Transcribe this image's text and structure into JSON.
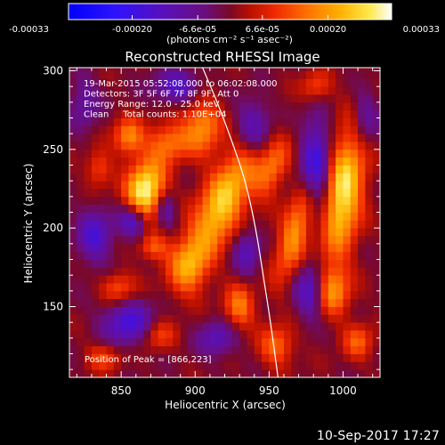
{
  "colorbar": {
    "tick_labels": [
      "-0.00033",
      "-0.00020",
      "-6.6e-05",
      "6.6e-05",
      "0.00020",
      "0.00033"
    ],
    "tick_values": [
      -0.00033,
      -0.0002,
      -6.6e-05,
      6.6e-05,
      0.0002,
      0.00033
    ],
    "range": [
      -0.00033,
      0.00033
    ],
    "units": "(photons cm⁻² s⁻¹ asec⁻²)",
    "colormap": "rhessi (blue → purple → red → orange → yellow → white)"
  },
  "chart_data": {
    "type": "heatmap",
    "title": "Reconstructed RHESSI Image",
    "xlabel": "Heliocentric X (arcsec)",
    "ylabel": "Heliocentric Y (arcsec)",
    "xlim": [
      815,
      1025
    ],
    "ylim": [
      105,
      302
    ],
    "xticks": [
      850,
      900,
      950,
      1000
    ],
    "yticks": [
      150,
      200,
      250,
      300
    ],
    "info_lines": [
      "19-Mar-2015 05:52:08.000 to 06:02:08.000",
      "Detectors: 3F 5F 6F 7F 8F 9F, Att 0",
      "Energy Range: 12.0 - 25.0 keV",
      "Clean     Total counts: 1.10E+04"
    ],
    "peak_label": "Position of Peak = [866,223]",
    "peak": [
      866,
      223
    ],
    "limb_points": [
      [
        905,
        302
      ],
      [
        915,
        280
      ],
      [
        925,
        255
      ],
      [
        934,
        230
      ],
      [
        941,
        200
      ],
      [
        946,
        170
      ],
      [
        951,
        140
      ],
      [
        956,
        105
      ]
    ],
    "sources": [
      {
        "x": 866,
        "y": 223,
        "amp": 1.0,
        "sx": 9,
        "sy": 14,
        "rot": 15
      },
      {
        "x": 855,
        "y": 258,
        "amp": 0.55,
        "sx": 7,
        "sy": 8,
        "rot": 0
      },
      {
        "x": 882,
        "y": 255,
        "amp": 0.45,
        "sx": 10,
        "sy": 9,
        "rot": 0
      },
      {
        "x": 835,
        "y": 238,
        "amp": 0.35,
        "sx": 6,
        "sy": 8,
        "rot": 0
      },
      {
        "x": 848,
        "y": 162,
        "amp": 0.4,
        "sx": 8,
        "sy": 7,
        "rot": 0
      },
      {
        "x": 872,
        "y": 188,
        "amp": 0.4,
        "sx": 7,
        "sy": 6,
        "rot": 0
      },
      {
        "x": 905,
        "y": 265,
        "amp": 0.55,
        "sx": 9,
        "sy": 13,
        "rot": 0
      },
      {
        "x": 918,
        "y": 215,
        "amp": 0.8,
        "sx": 10,
        "sy": 28,
        "rot": 28
      },
      {
        "x": 895,
        "y": 175,
        "amp": 0.5,
        "sx": 9,
        "sy": 12,
        "rot": 0
      },
      {
        "x": 930,
        "y": 150,
        "amp": 0.5,
        "sx": 7,
        "sy": 10,
        "rot": 0
      },
      {
        "x": 952,
        "y": 238,
        "amp": 0.45,
        "sx": 7,
        "sy": 14,
        "rot": 22
      },
      {
        "x": 968,
        "y": 198,
        "amp": 0.6,
        "sx": 7,
        "sy": 22,
        "rot": 18
      },
      {
        "x": 955,
        "y": 125,
        "amp": 0.45,
        "sx": 8,
        "sy": 9,
        "rot": 0
      },
      {
        "x": 1000,
        "y": 222,
        "amp": 0.9,
        "sx": 9,
        "sy": 28,
        "rot": 8
      },
      {
        "x": 993,
        "y": 160,
        "amp": 0.55,
        "sx": 8,
        "sy": 11,
        "rot": 0
      },
      {
        "x": 1010,
        "y": 128,
        "amp": 0.4,
        "sx": 7,
        "sy": 8,
        "rot": 0
      },
      {
        "x": 875,
        "y": 132,
        "amp": 0.35,
        "sx": 8,
        "sy": 7,
        "rot": 0
      },
      {
        "x": 838,
        "y": 118,
        "amp": 0.35,
        "sx": 8,
        "sy": 6,
        "rot": 0
      },
      {
        "x": 982,
        "y": 290,
        "amp": 0.35,
        "sx": 7,
        "sy": 7,
        "rot": 0
      },
      {
        "x": 858,
        "y": 205,
        "amp": -0.7,
        "sx": 7,
        "sy": 8,
        "rot": 0
      },
      {
        "x": 832,
        "y": 195,
        "amp": -0.5,
        "sx": 8,
        "sy": 12,
        "rot": 0
      },
      {
        "x": 855,
        "y": 140,
        "amp": -0.55,
        "sx": 12,
        "sy": 10,
        "rot": 0
      },
      {
        "x": 888,
        "y": 290,
        "amp": -0.5,
        "sx": 11,
        "sy": 7,
        "rot": 0
      },
      {
        "x": 880,
        "y": 212,
        "amp": -0.4,
        "sx": 5,
        "sy": 8,
        "rot": 0
      },
      {
        "x": 940,
        "y": 265,
        "amp": -0.45,
        "sx": 8,
        "sy": 12,
        "rot": 0
      },
      {
        "x": 935,
        "y": 185,
        "amp": -0.4,
        "sx": 6,
        "sy": 10,
        "rot": 0
      },
      {
        "x": 982,
        "y": 238,
        "amp": -0.65,
        "sx": 7,
        "sy": 22,
        "rot": 0
      },
      {
        "x": 978,
        "y": 160,
        "amp": -0.5,
        "sx": 7,
        "sy": 12,
        "rot": 0
      },
      {
        "x": 915,
        "y": 130,
        "amp": -0.4,
        "sx": 9,
        "sy": 8,
        "rot": 0
      },
      {
        "x": 1015,
        "y": 270,
        "amp": -0.35,
        "sx": 6,
        "sy": 12,
        "rot": 0
      },
      {
        "x": 825,
        "y": 280,
        "amp": -0.3,
        "sx": 7,
        "sy": 12,
        "rot": 0
      }
    ]
  },
  "timestamp": "10-Sep-2017 17:27"
}
